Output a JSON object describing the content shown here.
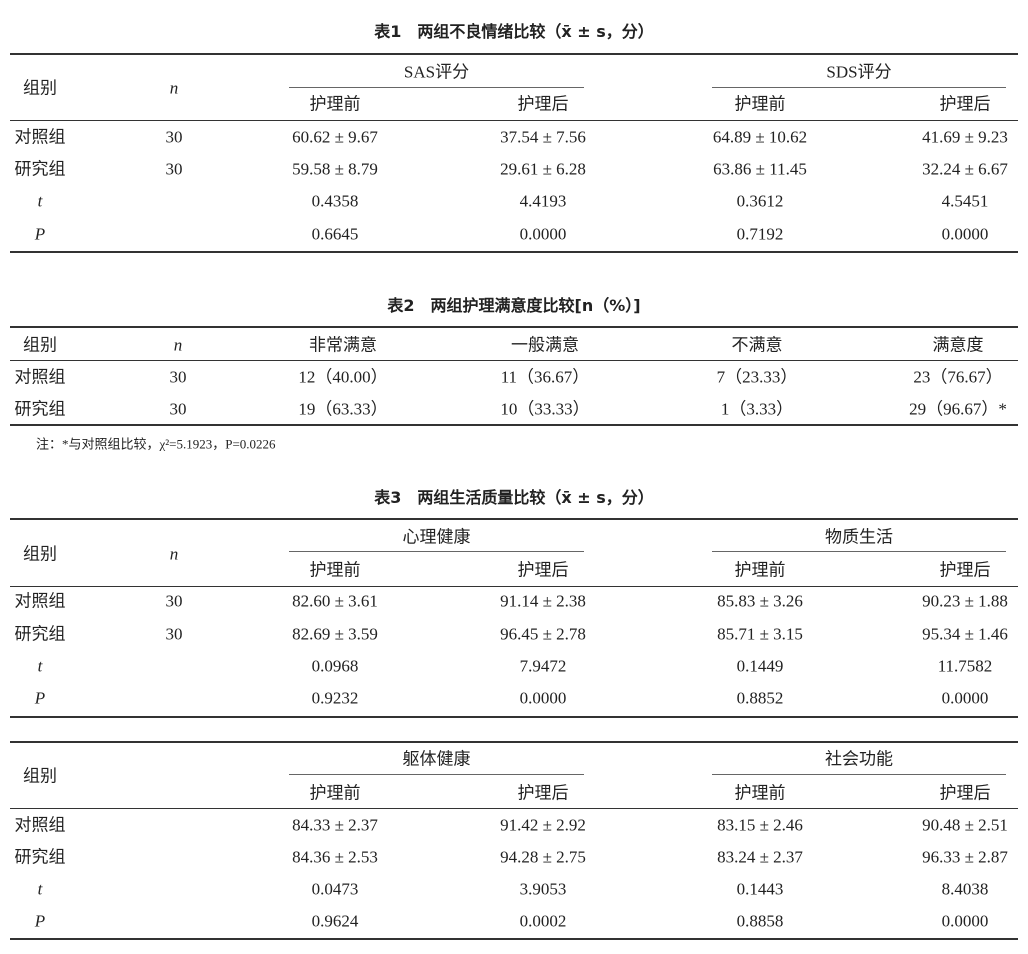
{
  "tables": [
    {
      "title": "表1　两组不良情绪比较（x̄ ± s，分）",
      "group_header": "组别",
      "n_header": "n",
      "groups": [
        "SAS评分",
        "SDS评分"
      ],
      "sub_headers": [
        "护理前",
        "护理后",
        "护理前",
        "护理后"
      ],
      "rows": [
        {
          "label": "对照组",
          "n": "30",
          "cells": [
            "60.62 ± 9.67",
            "37.54 ± 7.56",
            "64.89 ± 10.62",
            "41.69 ± 9.23"
          ]
        },
        {
          "label": "研究组",
          "n": "30",
          "cells": [
            "59.58 ± 8.79",
            "29.61 ± 6.28",
            "63.86 ± 11.45",
            "32.24 ± 6.67"
          ]
        },
        {
          "label": "t",
          "n": "",
          "cells": [
            "0.4358",
            "4.4193",
            "0.3612",
            "4.5451"
          ]
        },
        {
          "label": "P",
          "n": "",
          "cells": [
            "0.6645",
            "0.0000",
            "0.7192",
            "0.0000"
          ]
        }
      ]
    },
    {
      "title": "表2　两组护理满意度比较[n（%）]",
      "headers": [
        "组别",
        "n",
        "非常满意",
        "一般满意",
        "不满意",
        "满意度"
      ],
      "rows": [
        {
          "label": "对照组",
          "n": "30",
          "cells": [
            "12（40.00）",
            "11（36.67）",
            "7（23.33）",
            "23（76.67）"
          ]
        },
        {
          "label": "研究组",
          "n": "30",
          "cells": [
            "19（63.33）",
            "10（33.33）",
            "1（3.33）",
            "29（96.67）*"
          ]
        }
      ],
      "note": "注：*与对照组比较，χ²=5.1923，P=0.0226"
    },
    {
      "title": "表3　两组生活质量比较（x̄ ± s，分）",
      "group_header": "组别",
      "n_header": "n",
      "groups": [
        "心理健康",
        "物质生活"
      ],
      "sub_headers": [
        "护理前",
        "护理后",
        "护理前",
        "护理后"
      ],
      "rows": [
        {
          "label": "对照组",
          "n": "30",
          "cells": [
            "82.60 ± 3.61",
            "91.14 ± 2.38",
            "85.83 ± 3.26",
            "90.23 ± 1.88"
          ]
        },
        {
          "label": "研究组",
          "n": "30",
          "cells": [
            "82.69 ± 3.59",
            "96.45 ± 2.78",
            "85.71 ± 3.15",
            "95.34 ± 1.46"
          ]
        },
        {
          "label": "t",
          "n": "",
          "cells": [
            "0.0968",
            "7.9472",
            "0.1449",
            "11.7582"
          ]
        },
        {
          "label": "P",
          "n": "",
          "cells": [
            "0.9232",
            "0.0000",
            "0.8852",
            "0.0000"
          ]
        }
      ]
    },
    {
      "title": "",
      "group_header": "组别",
      "n_header": "",
      "groups": [
        "躯体健康",
        "社会功能"
      ],
      "sub_headers": [
        "护理前",
        "护理后",
        "护理前",
        "护理后"
      ],
      "rows": [
        {
          "label": "对照组",
          "n": "",
          "cells": [
            "84.33 ± 2.37",
            "91.42 ± 2.92",
            "83.15 ± 2.46",
            "90.48 ± 2.51"
          ]
        },
        {
          "label": "研究组",
          "n": "",
          "cells": [
            "84.36 ± 2.53",
            "94.28 ± 2.75",
            "83.24 ± 2.37",
            "96.33 ± 2.87"
          ]
        },
        {
          "label": "t",
          "n": "",
          "cells": [
            "0.0473",
            "3.9053",
            "0.1443",
            "8.4038"
          ]
        },
        {
          "label": "P",
          "n": "",
          "cells": [
            "0.9624",
            "0.0002",
            "0.8858",
            "0.0000"
          ]
        }
      ]
    }
  ]
}
